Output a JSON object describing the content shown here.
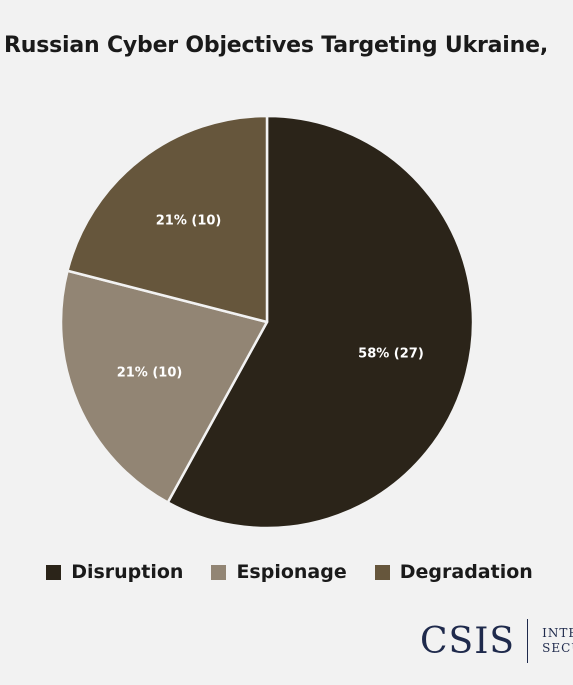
{
  "chart_data": {
    "type": "pie",
    "title": ": Russian Cyber Objectives Targeting Ukraine, ",
    "slices": [
      {
        "label": "Disruption",
        "percent": 58,
        "count": 27,
        "value_label": "58% (27)",
        "color": "#2b2419"
      },
      {
        "label": "Espionage",
        "percent": 21,
        "count": 10,
        "value_label": "21% (10)",
        "color": "#928574"
      },
      {
        "label": "Degradation",
        "percent": 21,
        "count": 10,
        "value_label": "21% (10)",
        "color": "#66563c"
      }
    ],
    "legend_position": "bottom"
  },
  "logo": {
    "text": "CSIS",
    "sub_line1": "INTE",
    "sub_line2": "SECU"
  }
}
